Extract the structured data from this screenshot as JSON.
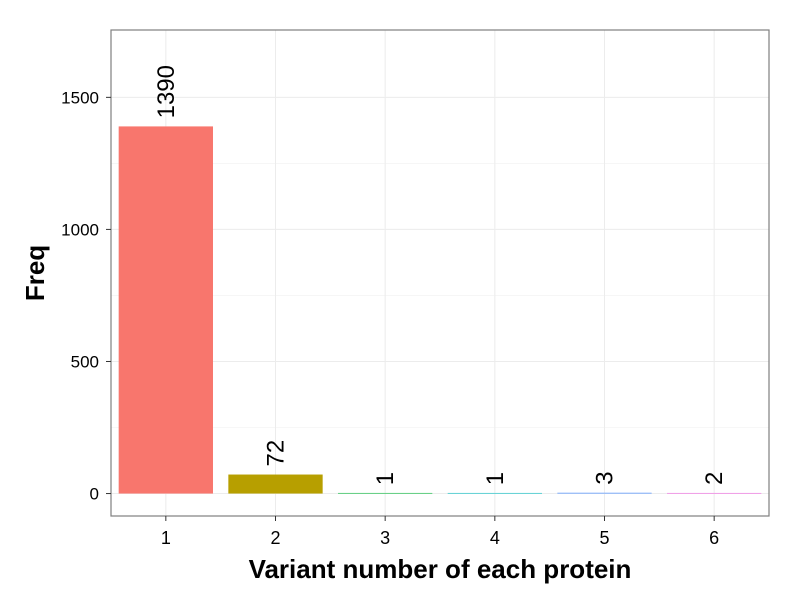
{
  "chart_data": {
    "type": "bar",
    "title": "",
    "xlabel": "Variant number of each protein",
    "ylabel": "Freq",
    "categories": [
      "1",
      "2",
      "3",
      "4",
      "5",
      "6"
    ],
    "values": [
      1390,
      72,
      1,
      1,
      3,
      2
    ],
    "value_labels": [
      "1390",
      "72",
      "1",
      "1",
      "3",
      "2"
    ],
    "bar_colors": [
      "#F8766D",
      "#B79F00",
      "#00BA38",
      "#00BFC4",
      "#619CFF",
      "#F564E3"
    ],
    "y_ticks": [
      0,
      500,
      1000,
      1500
    ],
    "y_tick_labels": [
      "0",
      "500",
      "1000",
      "1500"
    ],
    "ylim": [
      -85,
      1755
    ],
    "grid": true,
    "legend": "none"
  }
}
